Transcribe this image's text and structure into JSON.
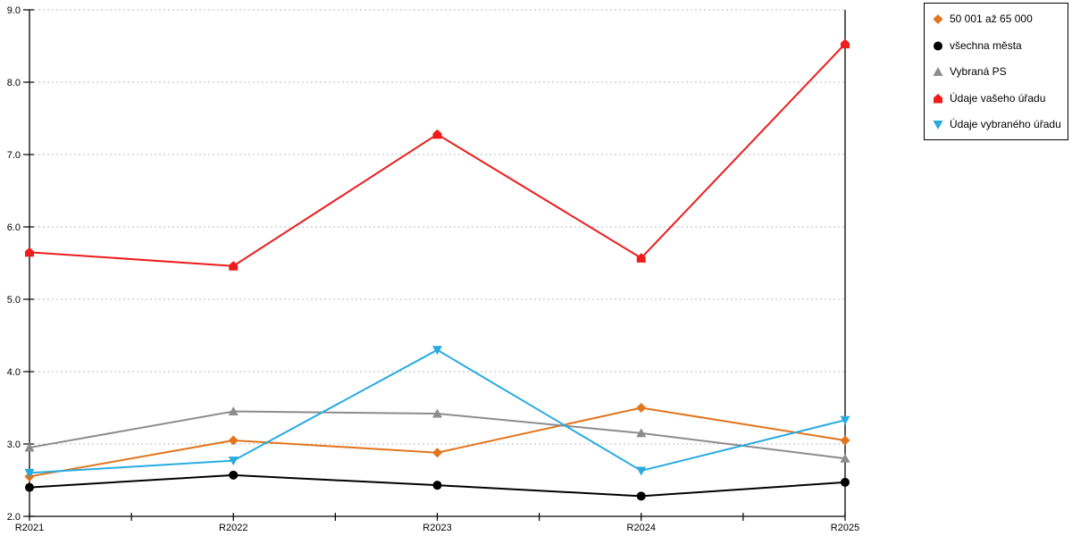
{
  "chart_data": {
    "type": "line",
    "categories": [
      "R2021",
      "R2022",
      "R2023",
      "R2024",
      "R2025"
    ],
    "series": [
      {
        "name": "50 001 až 65 000",
        "marker": "diamond",
        "color": "#E2741C",
        "values": [
          2.55,
          3.05,
          2.88,
          3.5,
          3.05
        ]
      },
      {
        "name": "všechna města",
        "marker": "circle",
        "color": "#000000",
        "values": [
          2.4,
          2.57,
          2.43,
          2.28,
          2.47
        ]
      },
      {
        "name": "Vybraná PS",
        "marker": "triangle-up",
        "color": "#8C8C8C",
        "values": [
          2.95,
          3.45,
          3.42,
          3.15,
          2.8
        ]
      },
      {
        "name": "Údaje vašeho úřadu",
        "marker": "pentagon-up",
        "color": "#EE1C1C",
        "values": [
          5.65,
          5.46,
          7.28,
          5.57,
          8.53
        ]
      },
      {
        "name": "Údaje vybraného úřadu",
        "marker": "triangle-down",
        "color": "#29ABE2",
        "values": [
          2.6,
          2.77,
          4.3,
          2.63,
          3.33
        ]
      }
    ],
    "title": "",
    "xlabel": "",
    "ylabel": "",
    "ylim": [
      2.0,
      9.0
    ],
    "ytick_step": 1.0,
    "ytick_labels": [
      "2.0",
      "3.0",
      "4.0",
      "5.0",
      "6.0",
      "7.0",
      "8.0",
      "9.0"
    ],
    "grid": "horizontal-dotted",
    "grid_color": "#BBBBBB",
    "axis_color": "#000000",
    "legend_position": "outside-top-right"
  }
}
